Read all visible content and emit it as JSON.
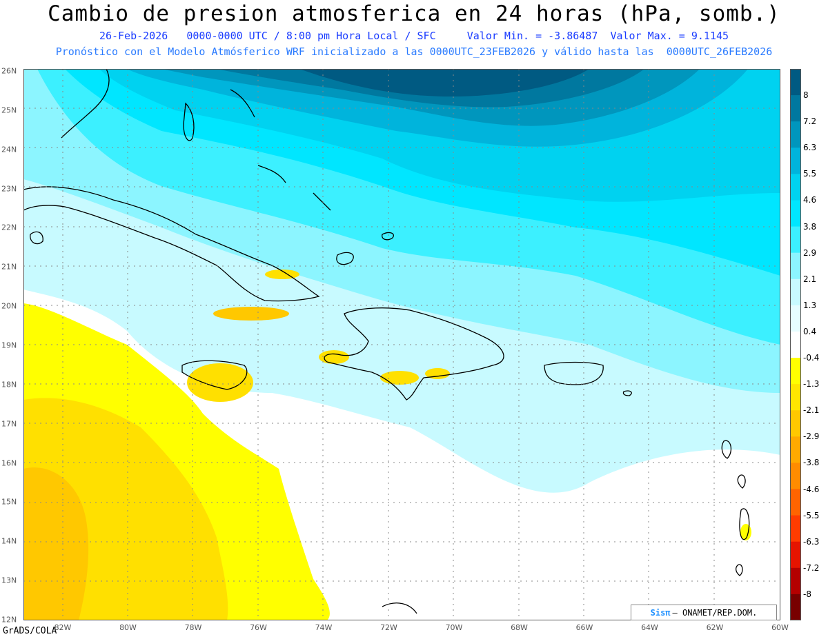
{
  "header": {
    "title": "Cambio de presion atmosferica en 24 horas (hPa, somb.)",
    "line1": "26-Feb-2026   0000-0000 UTC / 8:00 pm Hora Local / SFC     Valor Min. = -3.86487  Valor Max. = 9.1145",
    "line2": "Pronóstico con el Modelo Atmósferico WRF inicializado a las 0000UTC_23FEB2026 y válido hasta las  0000UTC_26FEB2026"
  },
  "footer": {
    "software": "GrADS/COLA"
  },
  "credit": {
    "brand": "Sisπ",
    "text": "– ONAMET/REP.DOM."
  },
  "axes": {
    "lat_labels": [
      "26N",
      "25N",
      "24N",
      "23N",
      "22N",
      "21N",
      "20N",
      "19N",
      "18N",
      "17N",
      "16N",
      "15N",
      "14N",
      "13N",
      "12N"
    ],
    "lon_labels": [
      "82W",
      "80W",
      "78W",
      "76W",
      "74W",
      "72W",
      "70W",
      "68W",
      "66W",
      "64W",
      "62W",
      "60W"
    ]
  },
  "colorbar": {
    "labels": [
      "8",
      "7.2",
      "6.3",
      "5.5",
      "4.6",
      "3.8",
      "2.9",
      "2.1",
      "1.3",
      "0.4",
      "-0.4",
      "-1.3",
      "-2.1",
      "-2.9",
      "-3.8",
      "-4.6",
      "-5.5",
      "-6.3",
      "-7.2",
      "-8"
    ],
    "colors": [
      "#005a82",
      "#00789f",
      "#0096bd",
      "#00b4dc",
      "#00d2f0",
      "#00e6ff",
      "#3cf0ff",
      "#8cf5ff",
      "#c8faff",
      "#e6fdff",
      "#ffffff",
      "#ffff00",
      "#ffe600",
      "#ffc800",
      "#ffaa00",
      "#ff8c00",
      "#ff6400",
      "#ff3c00",
      "#e61400",
      "#b40000",
      "#780000"
    ]
  }
}
